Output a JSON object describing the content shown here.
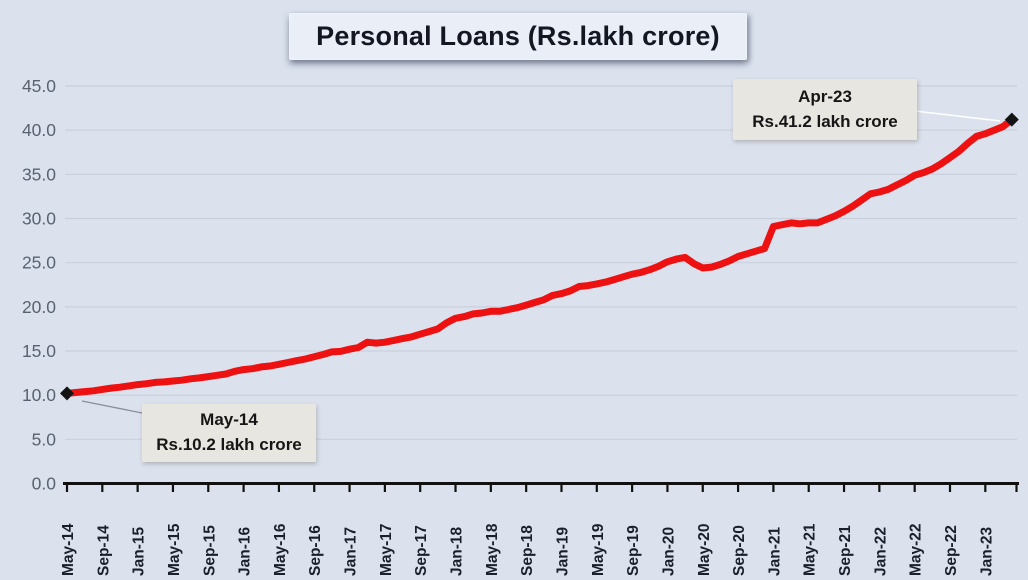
{
  "title": "Personal Loans (Rs.lakh crore)",
  "colors": {
    "background": "#dbe2ee",
    "line": "#ee1111",
    "marker": "#141414",
    "grid": "#c7cdd9",
    "axis": "#111111",
    "y_label": "#5a6170",
    "x_label": "#1a1f2b",
    "leader_start": "#8a8f99",
    "leader_end": "#ffffff",
    "title_box_bg": "#e9eef7",
    "callout_bg": "#e8e6e1"
  },
  "y_axis": {
    "tick_labels": [
      "0.0",
      "5.0",
      "10.0",
      "15.0",
      "20.0",
      "25.0",
      "30.0",
      "35.0",
      "40.0",
      "45.0"
    ],
    "min": 0,
    "max": 45,
    "step": 5
  },
  "x_axis": {
    "labels": [
      "May-14",
      "Sep-14",
      "Jan-15",
      "May-15",
      "Sep-15",
      "Jan-16",
      "May-16",
      "Sep-16",
      "Jan-17",
      "May-17",
      "Sep-17",
      "Jan-18",
      "May-18",
      "Sep-18",
      "Jan-19",
      "May-19",
      "Sep-19",
      "Jan-20",
      "May-20",
      "Sep-20",
      "Jan-21",
      "May-21",
      "Sep-21",
      "Jan-22",
      "May-22",
      "Sep-22",
      "Jan-23"
    ],
    "label_interval_months": 4
  },
  "annotations": {
    "start": {
      "line1": "May-14",
      "line2": "Rs.10.2 lakh crore",
      "value": 10.2
    },
    "end": {
      "line1": "Apr-23",
      "line2": "Rs.41.2 lakh crore",
      "value": 41.2
    }
  },
  "chart_data": {
    "type": "line",
    "title": "Personal Loans (Rs.lakh crore)",
    "series_name": "Personal Loans outstanding",
    "unit": "Rs. lakh crore",
    "frequency": "monthly",
    "start": "May-2014",
    "end": "Apr-2023",
    "ylim": [
      0,
      45
    ],
    "grid": true,
    "legend": "none",
    "values": [
      10.2,
      10.3,
      10.4,
      10.5,
      10.65,
      10.8,
      10.9,
      11.05,
      11.2,
      11.3,
      11.45,
      11.5,
      11.6,
      11.7,
      11.85,
      11.95,
      12.1,
      12.25,
      12.4,
      12.7,
      12.9,
      13.0,
      13.2,
      13.3,
      13.5,
      13.7,
      13.9,
      14.1,
      14.35,
      14.6,
      14.9,
      14.95,
      15.2,
      15.4,
      16.0,
      15.9,
      16.0,
      16.2,
      16.4,
      16.6,
      16.9,
      17.2,
      17.5,
      18.2,
      18.7,
      18.9,
      19.2,
      19.3,
      19.5,
      19.5,
      19.7,
      19.9,
      20.2,
      20.5,
      20.8,
      21.3,
      21.5,
      21.8,
      22.3,
      22.4,
      22.6,
      22.8,
      23.1,
      23.4,
      23.7,
      23.9,
      24.2,
      24.6,
      25.1,
      25.4,
      25.6,
      24.9,
      24.4,
      24.5,
      24.8,
      25.2,
      25.7,
      26.0,
      26.3,
      26.6,
      29.1,
      29.3,
      29.5,
      29.4,
      29.5,
      29.5,
      29.9,
      30.3,
      30.8,
      31.4,
      32.1,
      32.8,
      33.0,
      33.3,
      33.8,
      34.3,
      34.9,
      35.2,
      35.6,
      36.2,
      36.9,
      37.6,
      38.5,
      39.3,
      39.6,
      40.0,
      40.4,
      41.2
    ]
  }
}
